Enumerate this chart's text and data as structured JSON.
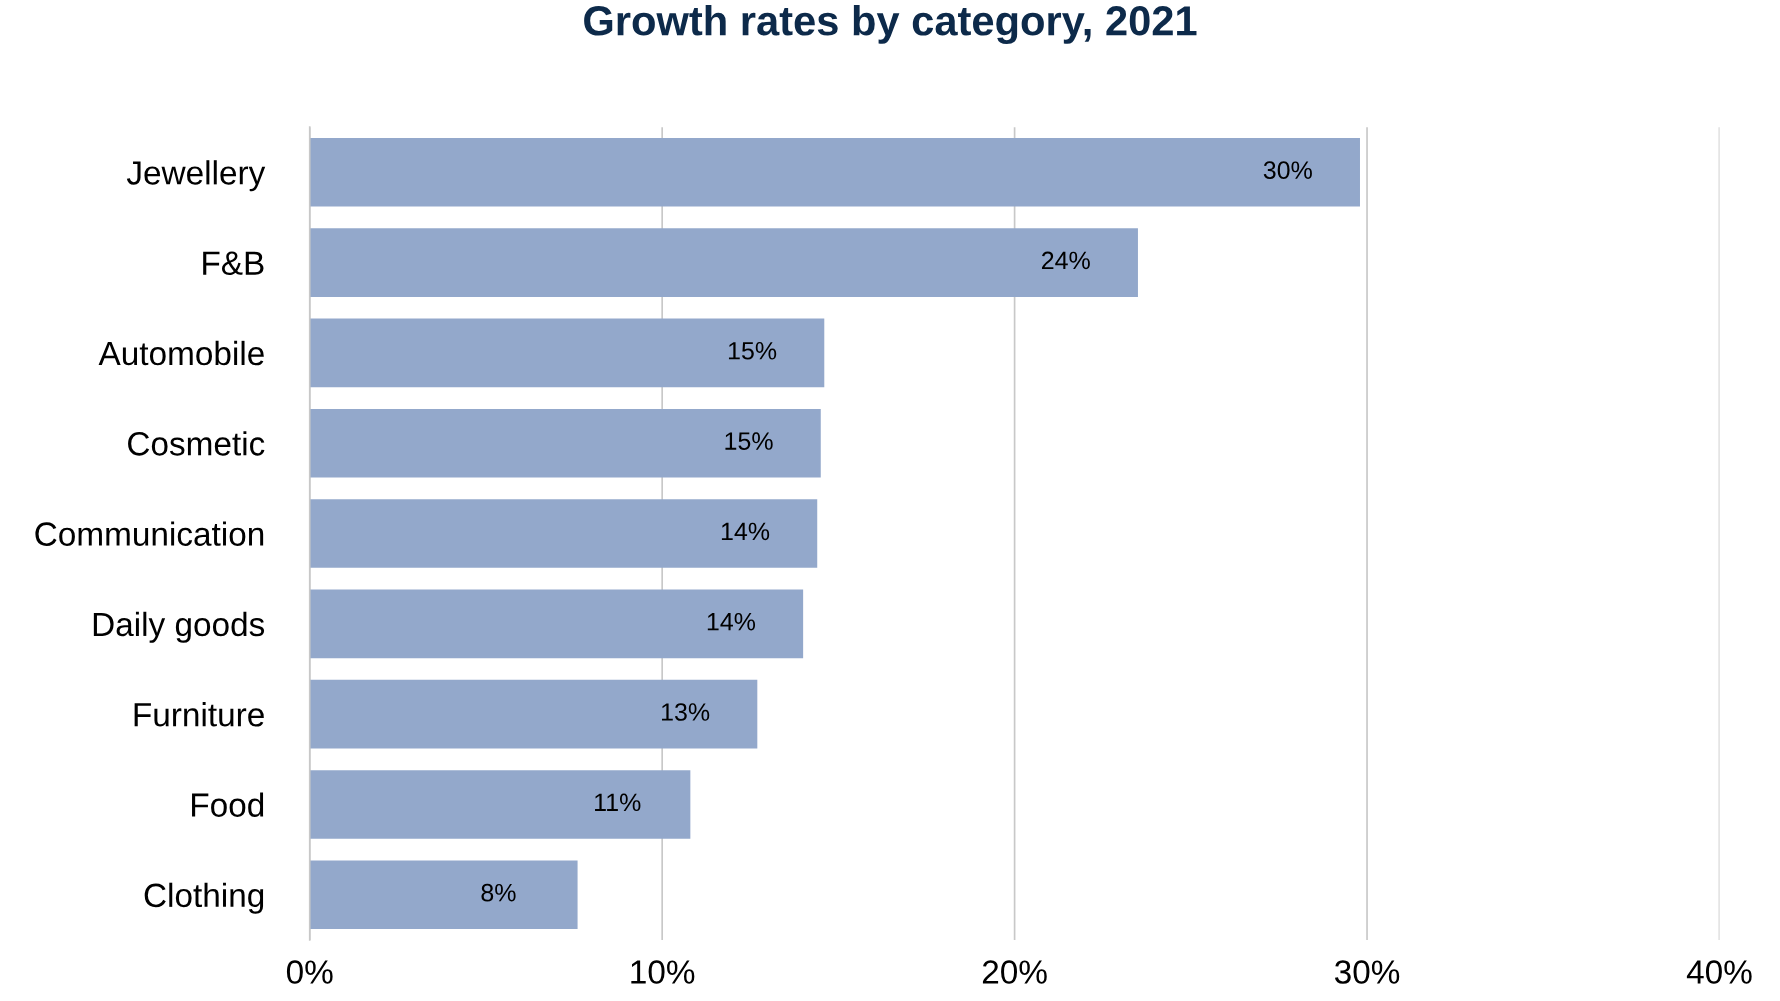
{
  "chart_data": {
    "type": "bar",
    "orientation": "horizontal",
    "title": "Growth rates by category, 2021",
    "categories": [
      "Jewellery",
      "F&B",
      "Automobile",
      "Cosmetic",
      "Communication",
      "Daily goods",
      "Furniture",
      "Food",
      "Clothing"
    ],
    "values": [
      29.8,
      23.5,
      14.6,
      14.5,
      14.4,
      14.0,
      12.7,
      10.8,
      7.6
    ],
    "value_labels": [
      "30%",
      "24%",
      "15%",
      "15%",
      "14%",
      "14%",
      "13%",
      "11%",
      "8%"
    ],
    "color": "#93a8cb",
    "xlim": [
      0,
      40
    ],
    "xticks": [
      {
        "value": 0,
        "label": "0%"
      },
      {
        "value": 10,
        "label": "10%"
      },
      {
        "value": 20,
        "label": "20%"
      },
      {
        "value": 30,
        "label": "30%"
      },
      {
        "value": 40,
        "label": "40%"
      }
    ],
    "grid": "x",
    "legend": false
  }
}
